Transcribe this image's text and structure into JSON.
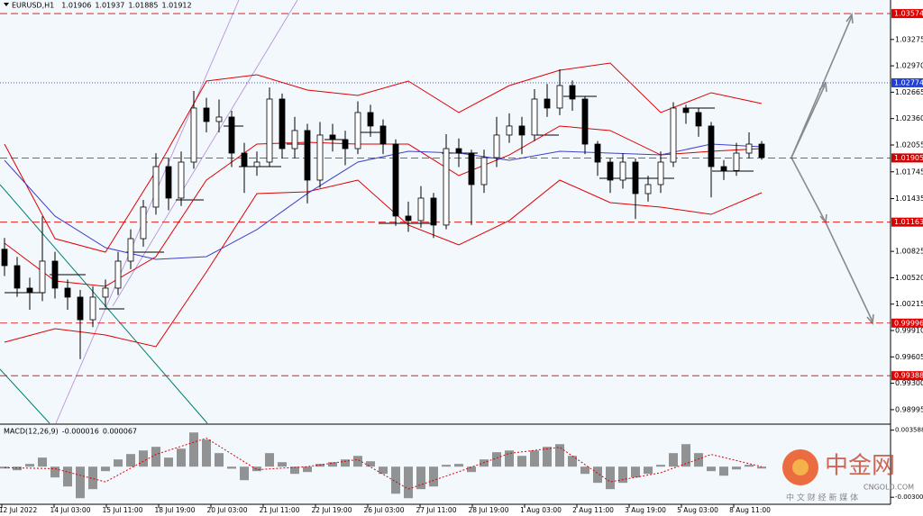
{
  "chart_data": [
    {
      "type": "candlestick",
      "symbol": "EURUSD,H1",
      "ohlc_readout": [
        1.01906,
        1.01937,
        1.01885,
        1.01912
      ],
      "x_labels": [
        "12 Jul 2022",
        "14 Jul 03:00",
        "15 Jul 11:00",
        "18 Jul 19:00",
        "20 Jul 03:00",
        "21 Jul 11:00",
        "22 Jul 19:00",
        "26 Jul 03:00",
        "27 Jul 11:00",
        "28 Jul 19:00",
        "1 Aug 03:00",
        "2 Aug 11:00",
        "3 Aug 19:00",
        "5 Aug 03:00",
        "8 Aug 11:00"
      ],
      "open": [
        1.0085,
        1.0066,
        1.004,
        1.00348,
        1.00712,
        1.004,
        1.00296,
        1.00035,
        1.00296,
        1.004,
        1.00712,
        1.00972,
        1.01337,
        1.01805,
        1.01441,
        1.01857,
        1.02482,
        1.02326,
        1.02378,
        1.01961,
        1.01805,
        1.01857,
        1.02586,
        1.02013,
        1.02222,
        1.01649,
        1.0217,
        1.02117,
        1.02013,
        1.0243,
        1.02274,
        1.02065,
        1.01233,
        1.01181,
        1.01441,
        1.01129,
        1.02013,
        1.0196,
        1.01597,
        1.01909,
        1.0217,
        1.02274,
        1.0217,
        1.02586,
        1.02482,
        1.02742,
        1.02586,
        1.02065,
        1.01857,
        1.01649,
        1.01857,
        1.01493,
        1.01597,
        1.01857,
        1.02482,
        1.0243,
        1.02274,
        1.01805,
        1.0176,
        1.01961,
        1.02065
      ],
      "high": [
        1.0098,
        1.0076,
        1.0052,
        1.0123,
        1.0082,
        1.005,
        1.0038,
        1.0042,
        1.005,
        1.0082,
        1.0108,
        1.0142,
        1.0196,
        1.019,
        1.0198,
        1.0268,
        1.026,
        1.0258,
        1.0245,
        1.0208,
        1.0198,
        1.0272,
        1.0265,
        1.0238,
        1.023,
        1.0232,
        1.023,
        1.0222,
        1.0256,
        1.0252,
        1.0235,
        1.0212,
        1.014,
        1.0158,
        1.015,
        1.0218,
        1.0213,
        1.02,
        1.02,
        1.0238,
        1.0242,
        1.0238,
        1.027,
        1.0276,
        1.0293,
        1.028,
        1.0262,
        1.021,
        1.019,
        1.0196,
        1.019,
        1.017,
        1.0198,
        1.0255,
        1.0252,
        1.0248,
        1.0232,
        1.0188,
        1.0208,
        1.022,
        1.021
      ],
      "low": [
        1.0054,
        1.003,
        1.0015,
        1.0025,
        1.0028,
        1.0015,
        0.9958,
        0.9995,
        1.0018,
        1.0032,
        1.0062,
        1.0088,
        1.0125,
        1.013,
        1.0135,
        1.0178,
        1.022,
        1.022,
        1.018,
        1.015,
        1.017,
        1.018,
        1.019,
        1.019,
        1.0138,
        1.0156,
        1.0198,
        1.0182,
        1.0195,
        1.0215,
        1.0195,
        1.0112,
        1.0105,
        1.011,
        1.0098,
        1.0108,
        1.018,
        1.0113,
        1.015,
        1.018,
        1.0208,
        1.0195,
        1.021,
        1.0238,
        1.024,
        1.0245,
        1.0195,
        1.017,
        1.015,
        1.0155,
        1.012,
        1.014,
        1.015,
        1.018,
        1.023,
        1.0215,
        1.0145,
        1.0165,
        1.017,
        1.019,
        1.01885
      ],
      "close": [
        1.0066,
        1.004,
        1.00348,
        1.00712,
        1.004,
        1.00296,
        1.00035,
        1.00296,
        1.004,
        1.00712,
        1.00972,
        1.01337,
        1.01805,
        1.01441,
        1.01857,
        1.02482,
        1.02326,
        1.02378,
        1.01961,
        1.01805,
        1.01857,
        1.02586,
        1.02013,
        1.02222,
        1.01649,
        1.0217,
        1.02117,
        1.02013,
        1.0243,
        1.02274,
        1.02065,
        1.01233,
        1.01181,
        1.01441,
        1.01129,
        1.02013,
        1.0196,
        1.01597,
        1.01909,
        1.0217,
        1.02274,
        1.0217,
        1.02586,
        1.02482,
        1.02742,
        1.02586,
        1.02065,
        1.01857,
        1.01649,
        1.01857,
        1.01493,
        1.01597,
        1.01857,
        1.02482,
        1.0243,
        1.02274,
        1.01805,
        1.0176,
        1.01961,
        1.02065,
        1.01912
      ],
      "overlays": [
        {
          "color": "#e00000",
          "x": [
            0,
            4,
            8,
            12,
            16,
            20,
            24,
            28,
            32,
            36,
            40,
            44,
            48,
            52,
            56,
            60
          ],
          "values": [
            1.02065,
            1.00972,
            1.00816,
            1.01753,
            1.02794,
            1.02867,
            1.0269,
            1.02628,
            1.02794,
            1.0243,
            1.02742,
            1.02919,
            1.03002,
            1.0243,
            1.02659,
            1.02534
          ]
        },
        {
          "color": "#e00000",
          "x": [
            0,
            4,
            8,
            12,
            16,
            20,
            24,
            28,
            32,
            36,
            40,
            44,
            48,
            52,
            56,
            60
          ],
          "values": [
            1.0092,
            1.00483,
            1.00421,
            1.00764,
            1.01649,
            1.02065,
            1.02086,
            1.02065,
            1.02065,
            1.01701,
            1.0194,
            1.02274,
            1.02222,
            1.0194,
            1.01982,
            1.02013
          ]
        },
        {
          "color": "#e00000",
          "x": [
            0,
            4,
            8,
            12,
            16,
            20,
            24,
            28,
            32,
            36,
            40,
            44,
            48,
            52,
            56,
            60
          ],
          "values": [
            0.99775,
            0.99931,
            0.99858,
            0.99723,
            1.00587,
            1.01493,
            1.01514,
            1.01649,
            1.01129,
            1.009,
            1.01181,
            1.01649,
            1.01389,
            1.01337,
            1.01253,
            1.01503
          ]
        },
        {
          "color": "#4040c8",
          "x": [
            0,
            4,
            8,
            12,
            16,
            20,
            24,
            28,
            32,
            36,
            40,
            44,
            48,
            52,
            56,
            60
          ],
          "values": [
            1.01878,
            1.01233,
            1.00868,
            1.00733,
            1.00764,
            1.01077,
            1.01493,
            1.01857,
            1.01982,
            1.01961,
            1.01878,
            1.01982,
            1.01961,
            1.0194,
            1.02065,
            1.02034
          ]
        }
      ],
      "levels": [
        {
          "value": 1.03574,
          "color": "#e00000"
        },
        {
          "value": 1.02774,
          "color": "#1f3fd6"
        },
        {
          "value": 1.01905,
          "color": "#d00000"
        },
        {
          "value": 1.01163,
          "color": "#e00000"
        },
        {
          "value": 0.99996,
          "color": "#e00000"
        },
        {
          "value": 0.99388,
          "color": "#e00000"
        }
      ],
      "ylim": [
        0.98838,
        1.03731
      ],
      "yticks": [
        1.03275,
        {
          "value": 1.0297,
          "label": "1.02970"
        },
        1.02665,
        {
          "value": 1.0236,
          "label": "1.02360"
        },
        1.02055,
        1.01745,
        1.01435,
        1.00825,
        {
          "value": 1.0052,
          "label": "1.00520"
        },
        1.00215,
        {
          "value": 0.9991,
          "label": "0.99910"
        },
        0.99605,
        {
          "value": 0.993,
          "label": "0.99300"
        },
        0.98995
      ]
    },
    {
      "type": "bar",
      "title": "MACD(12,26,9)",
      "readouts": [
        -1.6e-05,
        6.7e-05
      ],
      "color": "#707070",
      "values": [
        -0.00018,
        -0.00035,
        0.00027,
        0.00089,
        -0.00106,
        -0.00195,
        -0.0031,
        -0.00221,
        -0.00044,
        0.00071,
        0.00124,
        0.00159,
        0.00195,
        0.00089,
        0.00177,
        0.00336,
        0.00266,
        0.00133,
        -0.0002,
        -0.00133,
        -0.00044,
        0.00133,
        0.00044,
        -0.00071,
        -0.00053,
        0.00027,
        0.00044,
        0.00071,
        0.00106,
        0.00053,
        -0.00071,
        -0.00266,
        -0.0031,
        -0.00221,
        -0.00195,
        0.00018,
        0.00027,
        -0.00053,
        0.00071,
        0.00142,
        0.00159,
        0.00106,
        0.00159,
        0.00195,
        0.00221,
        0.00106,
        -0.00071,
        -0.00159,
        -0.00221,
        -0.00159,
        -0.00106,
        -0.00071,
        0.00018,
        0.00133,
        0.00221,
        0.00133,
        -0.00044,
        -0.00089,
        -0.00027,
        0.00018,
        -0.00018
      ],
      "signal": {
        "color": "#e00000",
        "x": [
          0,
          4,
          8,
          12,
          16,
          20,
          24,
          28,
          32,
          36,
          40,
          44,
          48,
          52,
          56,
          60
        ],
        "values": [
          -0.0001,
          -0.0002,
          -0.0015,
          0.0012,
          0.0028,
          -0.0003,
          0.0,
          0.0007,
          -0.0022,
          -0.0005,
          0.0013,
          0.0019,
          -0.0015,
          -0.0006,
          0.0012,
          0.0
        ]
      },
      "ylim": [
        -0.0037,
        0.004
      ],
      "yticks": [
        0.003588,
        -0.003009
      ]
    }
  ],
  "watermark": {
    "brand": "中金网",
    "site": "CNGOLD.COM",
    "tagline": "中 文 财 经 新 媒 体"
  }
}
